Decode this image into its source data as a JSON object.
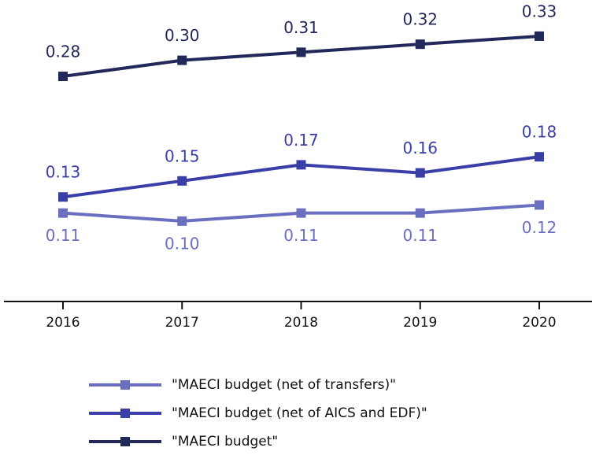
{
  "chart_data": {
    "type": "line",
    "categories": [
      "2016",
      "2017",
      "2018",
      "2019",
      "2020"
    ],
    "series": [
      {
        "name": "\"MAECI budget (net of transfers)\"",
        "color": "#6a6fc0",
        "values": [
          0.11,
          0.1,
          0.11,
          0.11,
          0.12
        ],
        "value_labels": [
          "0.11",
          "0.10",
          "0.11",
          "0.11",
          "0.12"
        ]
      },
      {
        "name": "\"MAECI budget (net of AICS and EDF)\"",
        "color": "#3a3fa8",
        "values": [
          0.13,
          0.15,
          0.17,
          0.16,
          0.18
        ],
        "value_labels": [
          "0.13",
          "0.15",
          "0.17",
          "0.16",
          "0.18"
        ]
      },
      {
        "name": "\"MAECI budget\"",
        "color": "#23285a",
        "values": [
          0.28,
          0.3,
          0.31,
          0.32,
          0.33
        ],
        "value_labels": [
          "0.28",
          "0.30",
          "0.31",
          "0.32",
          "0.33"
        ]
      }
    ],
    "ylim": [
      0,
      0.375
    ]
  }
}
